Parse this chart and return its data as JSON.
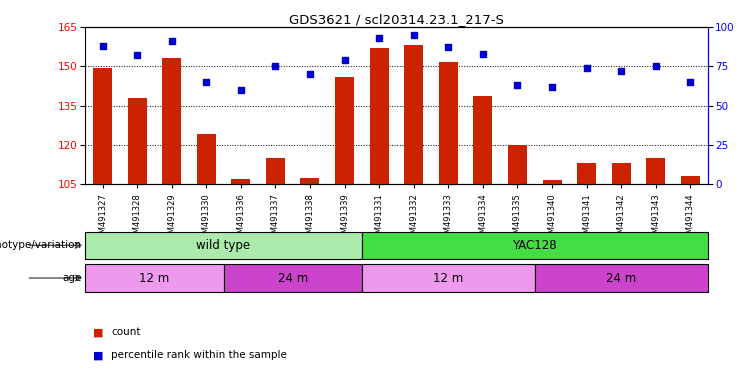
{
  "title": "GDS3621 / scl20314.23.1_217-S",
  "samples": [
    "GSM491327",
    "GSM491328",
    "GSM491329",
    "GSM491330",
    "GSM491336",
    "GSM491337",
    "GSM491338",
    "GSM491339",
    "GSM491331",
    "GSM491332",
    "GSM491333",
    "GSM491334",
    "GSM491335",
    "GSM491340",
    "GSM491341",
    "GSM491342",
    "GSM491343",
    "GSM491344"
  ],
  "counts": [
    149.5,
    138.0,
    153.0,
    124.0,
    107.0,
    115.0,
    107.5,
    146.0,
    157.0,
    158.0,
    151.5,
    138.5,
    120.0,
    106.5,
    113.0,
    113.0,
    115.0,
    108.0
  ],
  "percentiles": [
    88,
    82,
    91,
    65,
    60,
    75,
    70,
    79,
    93,
    95,
    87,
    83,
    63,
    62,
    74,
    72,
    75,
    65
  ],
  "ylim_left": [
    105,
    165
  ],
  "ylim_right": [
    0,
    100
  ],
  "yticks_left": [
    105,
    120,
    135,
    150,
    165
  ],
  "yticks_right": [
    0,
    25,
    50,
    75,
    100
  ],
  "bar_color": "#cc2200",
  "dot_color": "#0000cc",
  "genotype_groups": [
    {
      "label": "wild type",
      "start": 0,
      "end": 8,
      "color": "#aaeaaa"
    },
    {
      "label": "YAC128",
      "start": 8,
      "end": 18,
      "color": "#44dd44"
    }
  ],
  "age_groups": [
    {
      "label": "12 m",
      "start": 0,
      "end": 4,
      "color": "#ee99ee"
    },
    {
      "label": "24 m",
      "start": 4,
      "end": 8,
      "color": "#cc44cc"
    },
    {
      "label": "12 m",
      "start": 8,
      "end": 13,
      "color": "#ee99ee"
    },
    {
      "label": "24 m",
      "start": 13,
      "end": 18,
      "color": "#cc44cc"
    }
  ],
  "legend_count_color": "#cc2200",
  "legend_pct_color": "#0000cc",
  "legend_count_label": "count",
  "legend_pct_label": "percentile rank within the sample",
  "geno_label": "genotype/variation",
  "age_label": "age"
}
